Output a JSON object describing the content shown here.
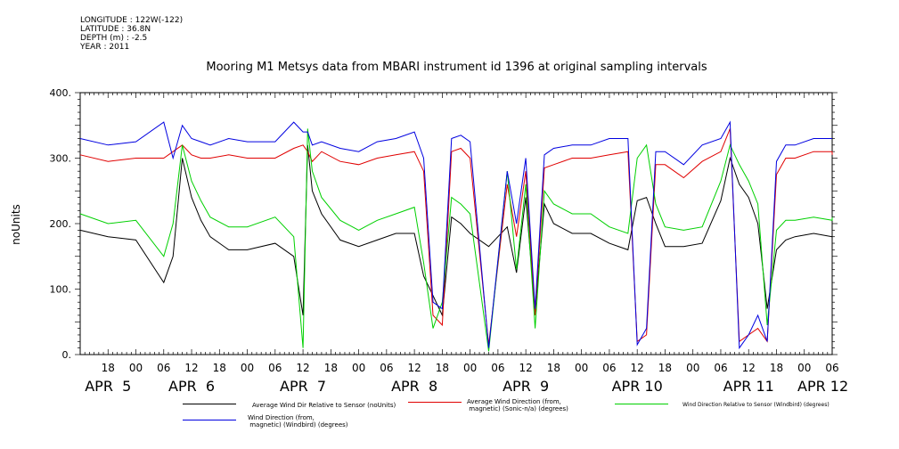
{
  "header": {
    "meta_lines": [
      "LONGITUDE : 122W(-122)",
      "LATITUDE : 36.8N",
      "DEPTH (m) : -2.5",
      "YEAR : 2011"
    ],
    "title": "Mooring M1 Metsys data from MBARI instrument id 1396 at original sampling intervals"
  },
  "chart_data": {
    "type": "line",
    "title": "Mooring M1 Metsys data from MBARI instrument id 1396 at original sampling intervals",
    "xlabel": "",
    "ylabel": "noUnits",
    "ylim": [
      0,
      400
    ],
    "y_ticks": [
      "0.",
      "100.",
      "200.",
      "300.",
      "400."
    ],
    "x_range_hours": [
      -6,
      156
    ],
    "x_hour_ticks": [
      {
        "h": 0,
        "label": "18"
      },
      {
        "h": 6,
        "label": "00"
      },
      {
        "h": 12,
        "label": "06"
      },
      {
        "h": 18,
        "label": "12"
      },
      {
        "h": 24,
        "label": "18"
      },
      {
        "h": 30,
        "label": "00"
      },
      {
        "h": 36,
        "label": "06"
      },
      {
        "h": 42,
        "label": "12"
      },
      {
        "h": 48,
        "label": "18"
      },
      {
        "h": 54,
        "label": "00"
      },
      {
        "h": 60,
        "label": "06"
      },
      {
        "h": 66,
        "label": "12"
      },
      {
        "h": 72,
        "label": "18"
      },
      {
        "h": 78,
        "label": "00"
      },
      {
        "h": 84,
        "label": "06"
      },
      {
        "h": 90,
        "label": "12"
      },
      {
        "h": 96,
        "label": "18"
      },
      {
        "h": 102,
        "label": "00"
      },
      {
        "h": 108,
        "label": "06"
      },
      {
        "h": 114,
        "label": "12"
      },
      {
        "h": 120,
        "label": "18"
      },
      {
        "h": 126,
        "label": "00"
      },
      {
        "h": 132,
        "label": "06"
      },
      {
        "h": 138,
        "label": "12"
      },
      {
        "h": 144,
        "label": "18"
      },
      {
        "h": 150,
        "label": "00"
      },
      {
        "h": 156,
        "label": "06"
      }
    ],
    "x_day_labels": [
      {
        "h": 0,
        "label": "APR  5"
      },
      {
        "h": 18,
        "label": "APR  6"
      },
      {
        "h": 42,
        "label": "APR  7"
      },
      {
        "h": 66,
        "label": "APR  8"
      },
      {
        "h": 90,
        "label": "APR  9"
      },
      {
        "h": 114,
        "label": "APR 10"
      },
      {
        "h": 138,
        "label": "APR 11"
      },
      {
        "h": 154,
        "label": "APR 12"
      }
    ],
    "grid": false,
    "series": [
      {
        "name": "Average Wind Dir Relative to Sensor (noUnits)",
        "color": "#000000",
        "x": [
          -6,
          0,
          6,
          12,
          14,
          16,
          18,
          20,
          22,
          26,
          30,
          36,
          40,
          42,
          43,
          44,
          46,
          50,
          54,
          58,
          62,
          66,
          68,
          70,
          72,
          74,
          76,
          78,
          82,
          86,
          88,
          90,
          92,
          94,
          96,
          100,
          104,
          108,
          112,
          114,
          116,
          118,
          120,
          124,
          128,
          132,
          134,
          136,
          138,
          140,
          142,
          144,
          146,
          148,
          152,
          156,
          158
        ],
        "y": [
          190,
          180,
          175,
          110,
          150,
          300,
          240,
          205,
          180,
          160,
          160,
          170,
          150,
          60,
          320,
          250,
          215,
          175,
          165,
          175,
          185,
          185,
          120,
          90,
          60,
          210,
          200,
          185,
          165,
          195,
          125,
          240,
          65,
          230,
          200,
          185,
          185,
          170,
          160,
          235,
          240,
          200,
          165,
          165,
          170,
          235,
          300,
          260,
          240,
          200,
          70,
          160,
          175,
          180,
          185,
          180,
          180
        ]
      },
      {
        "name": "Average Wind Direction (from,\n magnetic) (Sonic-n/a) (degrees)",
        "color": "#e00000",
        "x": [
          -6,
          0,
          6,
          12,
          14,
          16,
          18,
          20,
          22,
          26,
          30,
          36,
          40,
          42,
          43,
          44,
          46,
          50,
          54,
          58,
          62,
          66,
          68,
          70,
          72,
          74,
          76,
          78,
          82,
          86,
          88,
          90,
          92,
          94,
          96,
          100,
          104,
          108,
          112,
          114,
          116,
          118,
          120,
          124,
          128,
          132,
          134,
          136,
          138,
          140,
          142,
          144,
          146,
          148,
          152,
          156,
          158
        ],
        "y": [
          305,
          295,
          300,
          300,
          310,
          320,
          305,
          300,
          300,
          305,
          300,
          300,
          315,
          320,
          310,
          295,
          310,
          295,
          290,
          300,
          305,
          310,
          280,
          60,
          45,
          310,
          315,
          300,
          15,
          260,
          180,
          280,
          60,
          285,
          290,
          300,
          300,
          305,
          310,
          20,
          30,
          290,
          290,
          270,
          295,
          310,
          345,
          20,
          30,
          40,
          20,
          275,
          300,
          300,
          310,
          310,
          305
        ]
      },
      {
        "name": "Wind Direction Relative to Sensor (Windbird) (degrees)",
        "color": "#00d000",
        "x": [
          -6,
          0,
          6,
          12,
          14,
          16,
          18,
          20,
          22,
          26,
          30,
          36,
          40,
          42,
          43,
          44,
          46,
          50,
          54,
          58,
          62,
          66,
          68,
          70,
          72,
          74,
          76,
          78,
          82,
          86,
          88,
          90,
          92,
          94,
          96,
          100,
          104,
          108,
          112,
          114,
          116,
          118,
          120,
          124,
          128,
          132,
          134,
          136,
          138,
          140,
          142,
          144,
          146,
          148,
          152,
          156,
          158
        ],
        "y": [
          215,
          200,
          205,
          150,
          200,
          320,
          265,
          235,
          210,
          195,
          195,
          210,
          180,
          10,
          345,
          280,
          240,
          205,
          190,
          205,
          215,
          225,
          140,
          40,
          80,
          240,
          230,
          215,
          5,
          280,
          130,
          260,
          40,
          250,
          230,
          215,
          215,
          195,
          185,
          300,
          320,
          230,
          195,
          190,
          195,
          265,
          320,
          290,
          265,
          230,
          45,
          190,
          205,
          205,
          210,
          205,
          210
        ]
      },
      {
        "name": "Wind Direction (from,\n magnetic) (Windbird) (degrees)",
        "color": "#0000e0",
        "x": [
          -6,
          0,
          6,
          12,
          14,
          16,
          18,
          20,
          22,
          26,
          30,
          36,
          40,
          42,
          43,
          44,
          46,
          50,
          54,
          58,
          62,
          66,
          68,
          70,
          72,
          74,
          76,
          78,
          82,
          86,
          88,
          90,
          92,
          94,
          96,
          100,
          104,
          108,
          112,
          114,
          116,
          118,
          120,
          124,
          128,
          132,
          134,
          136,
          138,
          140,
          142,
          144,
          146,
          148,
          152,
          156,
          158
        ],
        "y": [
          330,
          320,
          325,
          355,
          300,
          350,
          330,
          325,
          320,
          330,
          325,
          325,
          355,
          340,
          340,
          320,
          325,
          315,
          310,
          325,
          330,
          340,
          300,
          80,
          70,
          330,
          335,
          325,
          10,
          280,
          200,
          300,
          70,
          305,
          315,
          320,
          320,
          330,
          330,
          15,
          40,
          310,
          310,
          290,
          320,
          330,
          355,
          10,
          30,
          60,
          20,
          295,
          320,
          320,
          330,
          330,
          330
        ]
      }
    ]
  },
  "legend": {
    "entries": [
      {
        "label": "Average Wind Dir Relative to Sensor (noUnits)",
        "color": "#000000"
      },
      {
        "label": "Average Wind Direction (from,\n magnetic) (Sonic-n/a) (degrees)",
        "color": "#e00000"
      },
      {
        "label": "Wind Direction Relative to Sensor (Windbird) (degrees)",
        "color": "#00d000"
      },
      {
        "label": "Wind Direction (from,\n magnetic) (Windbird) (degrees)",
        "color": "#0000e0"
      }
    ]
  }
}
